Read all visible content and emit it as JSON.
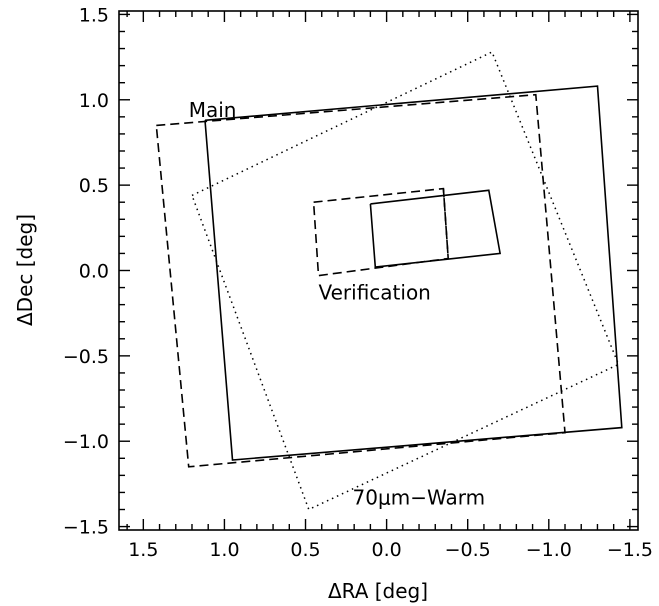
{
  "chart_data": {
    "type": "line",
    "xlabel": "ΔRA [deg]",
    "ylabel": "ΔDec [deg]",
    "xlim": [
      1.65,
      -1.55
    ],
    "ylim": [
      -1.52,
      1.52
    ],
    "x_inverted": true,
    "xticks": [
      1.5,
      1.0,
      0.5,
      0.0,
      -0.5,
      -1.0,
      -1.5
    ],
    "xtick_labels": [
      "1.5",
      "1.0",
      "0.5",
      "0.0",
      "−0.5",
      "−1.0",
      "−1.5"
    ],
    "yticks": [
      1.5,
      1.0,
      0.5,
      0.0,
      -0.5,
      -1.0,
      -1.5
    ],
    "ytick_labels": [
      "1.5",
      "1.0",
      "0.5",
      "0.0",
      "−0.5",
      "−1.0",
      "−1.5"
    ],
    "grid": false,
    "series": [
      {
        "style": "solid",
        "x": [
          1.12,
          -1.3,
          -1.45,
          0.95,
          1.12
        ],
        "y": [
          0.88,
          1.08,
          -0.92,
          -1.11,
          0.88
        ]
      },
      {
        "style": "dashed",
        "x": [
          1.42,
          -0.92,
          -1.1,
          1.22,
          1.42
        ],
        "y": [
          0.85,
          1.03,
          -0.95,
          -1.15,
          0.85
        ]
      },
      {
        "style": "dotted",
        "x": [
          1.2,
          -0.65,
          -1.43,
          0.48,
          1.2
        ],
        "y": [
          0.44,
          1.28,
          -0.55,
          -1.4,
          0.44
        ]
      },
      {
        "style": "solid",
        "x": [
          0.1,
          -0.63,
          -0.7,
          0.07,
          0.1
        ],
        "y": [
          0.39,
          0.47,
          0.1,
          0.02,
          0.39
        ]
      },
      {
        "style": "dashed",
        "x": [
          0.45,
          -0.35,
          -0.38,
          0.42,
          0.45
        ],
        "y": [
          0.4,
          0.48,
          0.07,
          -0.03,
          0.4
        ]
      },
      {
        "style": "dashed",
        "x": [
          -0.35,
          -0.38
        ],
        "y": [
          0.48,
          0.07
        ]
      }
    ],
    "annotations": [
      {
        "text": "Main",
        "x": 1.22,
        "y": 0.9
      },
      {
        "text": "Verification",
        "x": 0.42,
        "y": -0.17
      },
      {
        "text": "70μm−Warm",
        "x": 0.21,
        "y": -1.37
      }
    ]
  }
}
